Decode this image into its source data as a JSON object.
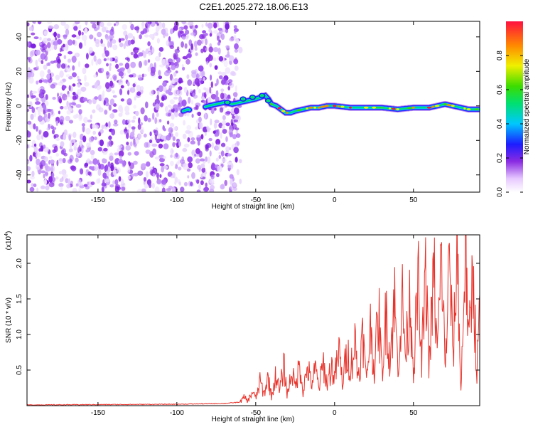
{
  "chart_data": [
    {
      "type": "heatmap",
      "title": "C2E1.2025.272.18.06.E13",
      "xlabel": "Height of straight line (km)",
      "ylabel": "Frequency (Hz)",
      "xlim": [
        -195,
        92
      ],
      "ylim": [
        -50,
        49
      ],
      "xticks": [
        -150,
        -100,
        -50,
        0,
        50
      ],
      "yticks": [
        -40,
        -20,
        0,
        20,
        40
      ],
      "noise_region_km": [
        -195,
        -65
      ],
      "signal_track": {
        "x": [
          -96,
          -93,
          -90,
          -80,
          -75,
          -70,
          -65,
          -60,
          -55,
          -50,
          -47,
          -44,
          -42,
          -40,
          -37,
          -34,
          -31,
          -28,
          -25,
          -20,
          -15,
          -10,
          -5,
          0,
          10,
          20,
          30,
          40,
          50,
          60,
          70,
          75,
          80,
          85,
          92
        ],
        "freq_hz": [
          -3,
          -2,
          -3,
          0,
          1,
          2,
          1,
          2,
          3,
          4,
          5,
          6,
          4,
          1,
          0,
          -2,
          -4,
          -4,
          -3,
          -2,
          -1,
          -1,
          0,
          0,
          -1,
          -1,
          -1,
          -2,
          -1,
          -1,
          1,
          0,
          -1,
          -2,
          -2
        ]
      },
      "colorbar": {
        "label": "Normalized spectral amplitude",
        "range": [
          0.0,
          1.0
        ],
        "ticks": [
          0.0,
          0.2,
          0.4,
          0.6,
          0.8
        ],
        "tick_labels": [
          "0.0",
          "0.2",
          "0.4",
          "0.6",
          "0.8"
        ]
      }
    },
    {
      "type": "line",
      "xlabel": "Height of straight line (km)",
      "ylabel": "SNR (10 * v/v)",
      "y_multiplier": "(x10",
      "y_multiplier_exp": "4",
      "y_multiplier_close": ")",
      "xlim": [
        -195,
        92
      ],
      "ylim": [
        0,
        2.4
      ],
      "xticks": [
        -150,
        -100,
        -50,
        0,
        50
      ],
      "yticks": [
        0.5,
        1.0,
        1.5,
        2.0
      ],
      "ytick_labels": [
        "0.5",
        "1.0",
        "1.5",
        "2.0"
      ],
      "series": [
        {
          "name": "SNR",
          "color": "#e8322a",
          "x": [
            -195,
            -150,
            -100,
            -70,
            -60,
            -57,
            -55,
            -52,
            -50,
            -47,
            -45,
            -42,
            -40,
            -37,
            -35,
            -32,
            -30,
            -27,
            -25,
            -22,
            -20,
            -17,
            -15,
            -12,
            -10,
            -7,
            -5,
            -2,
            0,
            3,
            5,
            8,
            10,
            13,
            15,
            18,
            20,
            23,
            25,
            28,
            30,
            33,
            35,
            38,
            40,
            43,
            45,
            48,
            50,
            53,
            55,
            58,
            60,
            63,
            65,
            68,
            70,
            73,
            75,
            78,
            80,
            83,
            85,
            88,
            90,
            92
          ],
          "values": [
            0.01,
            0.015,
            0.02,
            0.03,
            0.05,
            0.12,
            0.06,
            0.2,
            0.1,
            0.35,
            0.15,
            0.4,
            0.12,
            0.45,
            0.2,
            0.55,
            0.15,
            0.5,
            0.25,
            0.6,
            0.2,
            0.55,
            0.3,
            0.5,
            0.25,
            0.6,
            0.3,
            0.55,
            0.4,
            0.75,
            0.3,
            0.8,
            0.5,
            0.9,
            0.4,
            1.0,
            0.35,
            1.15,
            0.5,
            1.3,
            0.45,
            1.4,
            0.6,
            1.5,
            0.55,
            1.45,
            0.7,
            1.55,
            0.5,
            1.7,
            0.6,
            1.8,
            0.55,
            1.9,
            0.7,
            2.15,
            0.5,
            2.1,
            0.6,
            2.3,
            0.1,
            2.4,
            0.8,
            2.0,
            0.4,
            1.3
          ]
        }
      ]
    }
  ]
}
